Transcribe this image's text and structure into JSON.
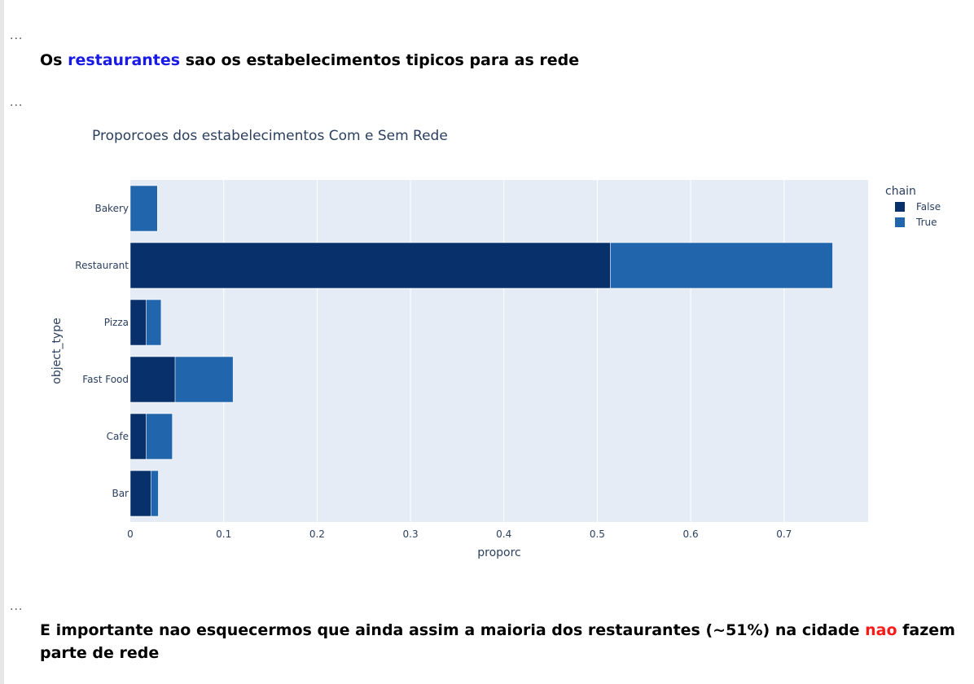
{
  "cells": {
    "ellipsis": "..."
  },
  "heading1": {
    "prefix": "Os ",
    "highlight": "restaurantes",
    "suffix": " sao os estabelecimentos tipicos para as rede"
  },
  "heading2": {
    "prefix": "E importante nao esquecermos que ainda assim a maioria dos restaurantes (~51%) na cidade ",
    "highlight": "nao",
    "suffix": " fazem parte de rede"
  },
  "colors": {
    "false": "#08306b",
    "true": "#2166ac",
    "plot_bg": "#e5ecf6",
    "highlight_blue": "#1a1ae6",
    "highlight_red": "#ff1a1a"
  },
  "chart_data": {
    "type": "bar",
    "orientation": "horizontal",
    "stacked": true,
    "title": "Proporcoes dos estabelecimentos Com e Sem Rede",
    "xlabel": "proporc",
    "ylabel": "object_type",
    "xlim": [
      0,
      0.79
    ],
    "xticks": [
      0,
      0.1,
      0.2,
      0.3,
      0.4,
      0.5,
      0.6,
      0.7
    ],
    "xtick_labels": [
      "0",
      "0.1",
      "0.2",
      "0.3",
      "0.4",
      "0.5",
      "0.6",
      "0.7"
    ],
    "categories": [
      "Bakery",
      "Restaurant",
      "Pizza",
      "Fast Food",
      "Cafe",
      "Bar"
    ],
    "legend_title": "chain",
    "legend_position": "top-right",
    "grid": true,
    "series": [
      {
        "name": "False",
        "values": [
          0,
          0.514,
          0.017,
          0.048,
          0.017,
          0.022
        ]
      },
      {
        "name": "True",
        "values": [
          0.029,
          0.238,
          0.016,
          0.062,
          0.028,
          0.008
        ]
      }
    ]
  }
}
